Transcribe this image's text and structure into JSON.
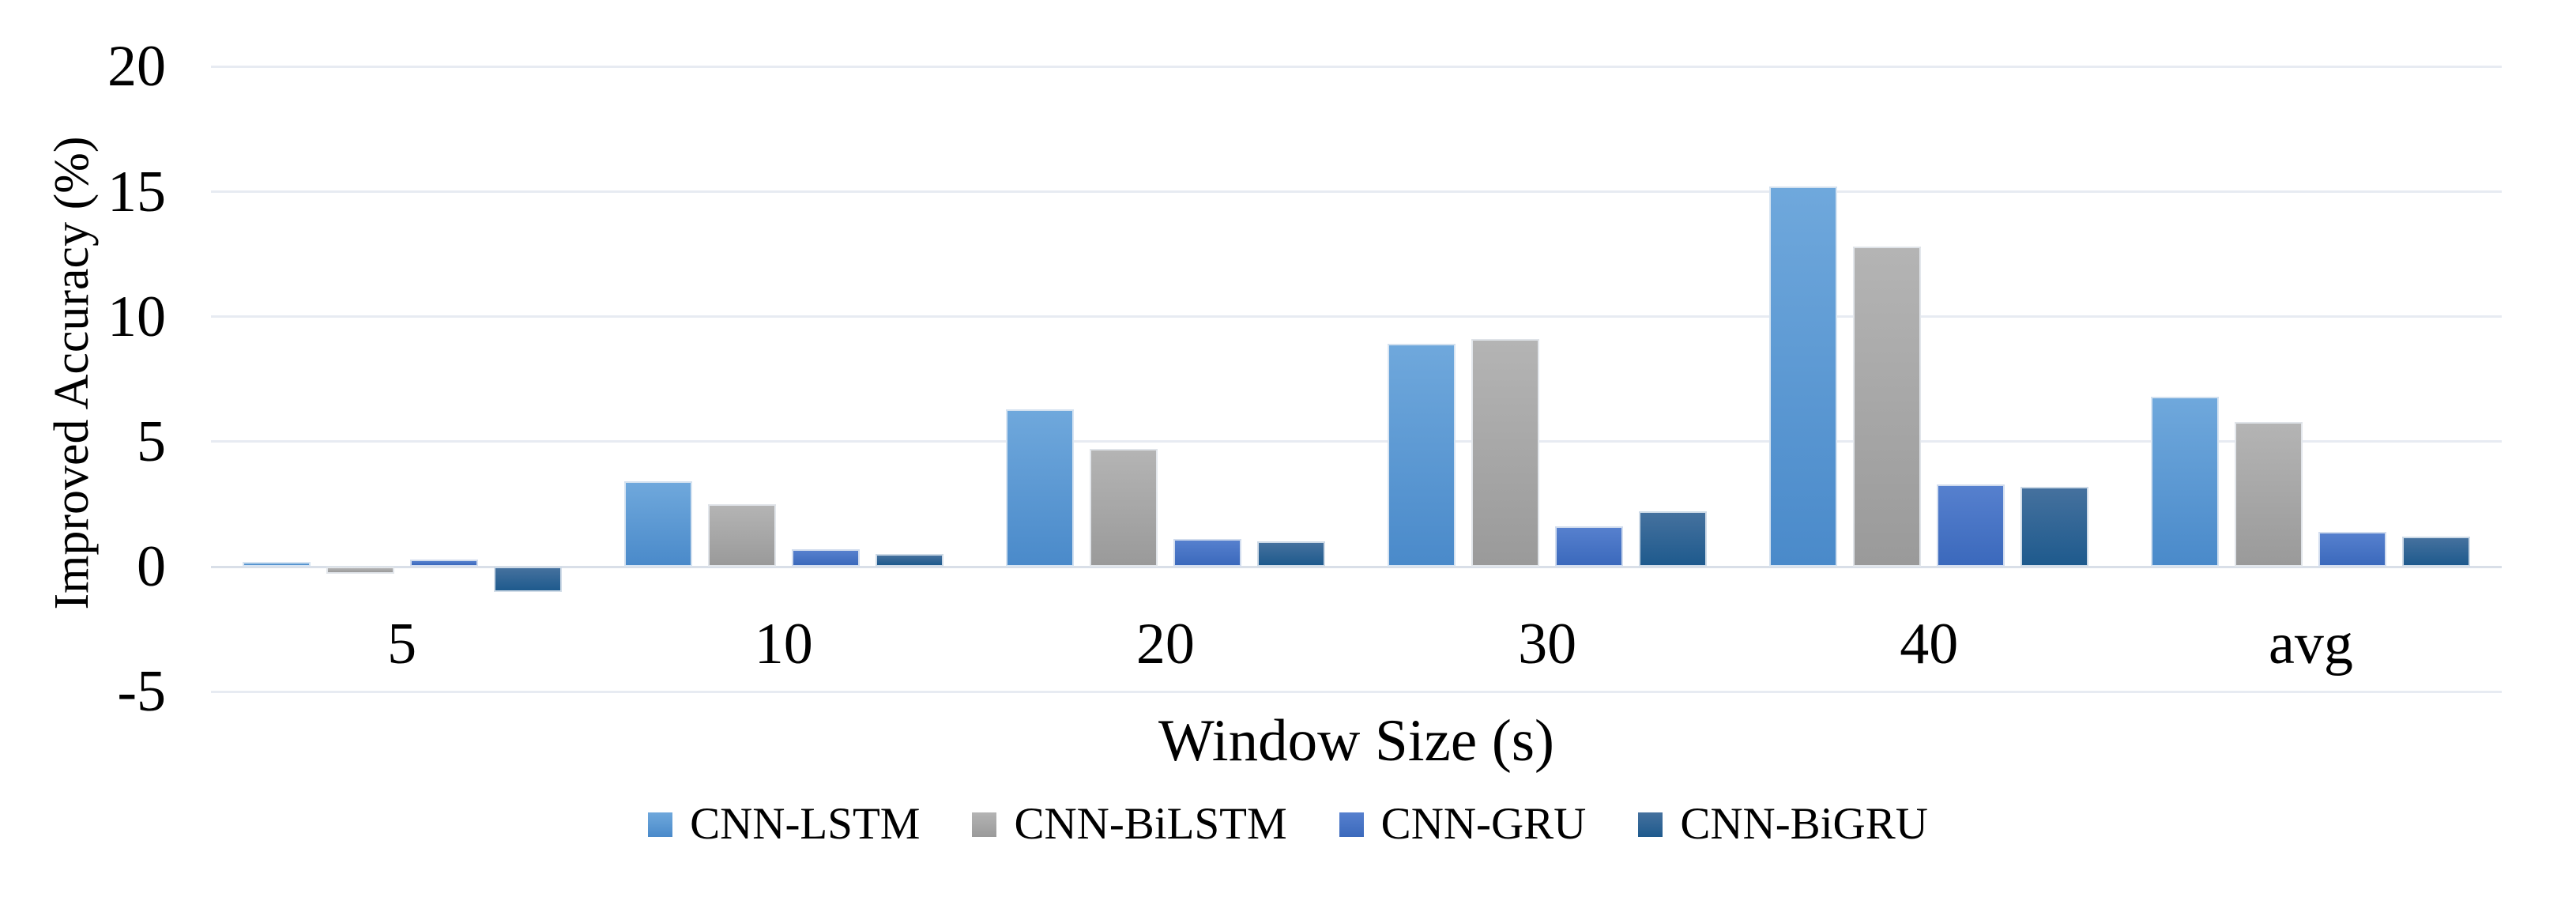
{
  "chart_data": {
    "type": "bar",
    "title": "",
    "xlabel": "Window Size (s)",
    "ylabel": "Improved Accuracy (%)",
    "categories": [
      "5",
      "10",
      "20",
      "30",
      "40",
      "avg"
    ],
    "series": [
      {
        "name": "CNN-LSTM",
        "color": "#5B9BD5",
        "color_top": "#6FA8DC",
        "color_bottom": "#4A8ACA",
        "values": [
          0.2,
          3.4,
          6.3,
          8.9,
          15.2,
          6.8
        ]
      },
      {
        "name": "CNN-BiLSTM",
        "color": "#A5A5A5",
        "color_top": "#B4B4B4",
        "color_bottom": "#9A9A9A",
        "values": [
          -0.3,
          2.5,
          4.7,
          9.1,
          12.8,
          5.8
        ]
      },
      {
        "name": "CNN-GRU",
        "color": "#4472C4",
        "color_top": "#5680CE",
        "color_bottom": "#3B69BC",
        "values": [
          0.3,
          0.7,
          1.1,
          1.6,
          3.3,
          1.4
        ]
      },
      {
        "name": "CNN-BiGRU",
        "color": "#255E91",
        "color_top": "#45719E",
        "color_bottom": "#1E5A8D",
        "values": [
          -1.0,
          0.5,
          1.0,
          2.2,
          3.2,
          1.2
        ]
      }
    ],
    "y_ticks": [
      20,
      15,
      10,
      5,
      0,
      -5
    ],
    "ylim": [
      -5,
      20
    ],
    "grid": true,
    "legend_position": "bottom",
    "background": "#FFFFFF",
    "gridline_color": "#E7EBF2",
    "zero_line_color": "#D9DFE8"
  }
}
